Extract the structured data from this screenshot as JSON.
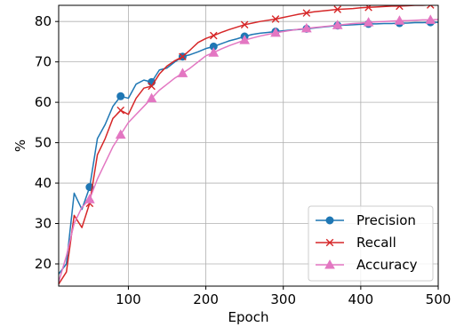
{
  "chart_data": {
    "type": "line",
    "xlabel": "Epoch",
    "ylabel": "%",
    "xlim": [
      10,
      500
    ],
    "ylim": [
      14.5,
      84
    ],
    "xticks": [
      100,
      200,
      300,
      400,
      500
    ],
    "yticks": [
      20,
      30,
      40,
      50,
      60,
      70,
      80
    ],
    "grid": true,
    "legend_position": "bottom-right",
    "series": [
      {
        "name": "Precision",
        "color": "#1f77b4",
        "marker": "circle",
        "marker_every": 4,
        "x": [
          10,
          20,
          30,
          40,
          50,
          60,
          70,
          80,
          90,
          100,
          110,
          120,
          130,
          140,
          150,
          160,
          170,
          180,
          190,
          200,
          210,
          220,
          230,
          240,
          250,
          260,
          270,
          280,
          290,
          300,
          310,
          320,
          330,
          340,
          350,
          360,
          370,
          380,
          390,
          400,
          410,
          420,
          430,
          440,
          450,
          460,
          470,
          480,
          490,
          500
        ],
        "values": [
          17.5,
          20,
          37.5,
          33.5,
          39,
          51,
          54.5,
          59,
          61.5,
          61,
          64.5,
          65.5,
          65,
          68,
          68.5,
          70,
          71.3,
          71.8,
          72.5,
          73.3,
          73.8,
          74.5,
          75.2,
          75.7,
          76.3,
          76.8,
          77.1,
          77.3,
          77.5,
          77.7,
          77.9,
          78,
          78.2,
          78.4,
          78.6,
          78.8,
          79,
          79.1,
          79.2,
          79.3,
          79.4,
          79.4,
          79.5,
          79.5,
          79.6,
          79.6,
          79.7,
          79.7,
          79.8,
          79.8
        ]
      },
      {
        "name": "Recall",
        "color": "#d62728",
        "marker": "x",
        "marker_every": 4,
        "x": [
          10,
          20,
          30,
          40,
          50,
          60,
          70,
          80,
          90,
          100,
          110,
          120,
          130,
          140,
          150,
          160,
          170,
          180,
          190,
          200,
          210,
          220,
          230,
          240,
          250,
          260,
          270,
          280,
          290,
          300,
          310,
          320,
          330,
          340,
          350,
          360,
          370,
          380,
          390,
          400,
          410,
          420,
          430,
          440,
          450,
          460,
          470,
          480,
          490,
          500
        ],
        "values": [
          15,
          18,
          32,
          29,
          35,
          47,
          51,
          56,
          58,
          57,
          61,
          63.5,
          64,
          67,
          69,
          70.3,
          71.3,
          73,
          74.8,
          75.8,
          76.5,
          77.3,
          78,
          78.6,
          79.2,
          79.6,
          80,
          80.3,
          80.6,
          81,
          81.4,
          81.8,
          82.1,
          82.4,
          82.6,
          82.8,
          83,
          83.1,
          83.2,
          83.4,
          83.5,
          83.6,
          83.7,
          83.8,
          83.8,
          83.9,
          84,
          84,
          84.1,
          84.1
        ]
      },
      {
        "name": "Accuracy",
        "color": "#e377c2",
        "marker": "triangle",
        "marker_every": 4,
        "x": [
          10,
          20,
          30,
          40,
          50,
          60,
          70,
          80,
          90,
          100,
          110,
          120,
          130,
          140,
          150,
          160,
          170,
          180,
          190,
          200,
          210,
          220,
          230,
          240,
          250,
          260,
          270,
          280,
          290,
          300,
          310,
          320,
          330,
          340,
          350,
          360,
          370,
          380,
          390,
          400,
          410,
          420,
          430,
          440,
          450,
          460,
          470,
          480,
          490,
          500
        ],
        "values": [
          15.5,
          22,
          30,
          34,
          36,
          41,
          45,
          49,
          52,
          55,
          57,
          59,
          61,
          63,
          64.5,
          66,
          67.2,
          68.5,
          70,
          71.5,
          72.3,
          73.2,
          74,
          74.7,
          75.4,
          75.9,
          76.4,
          76.8,
          77.2,
          77.5,
          77.8,
          78.1,
          78.3,
          78.5,
          78.7,
          78.9,
          79.1,
          79.3,
          79.5,
          79.6,
          79.8,
          79.9,
          80,
          80.1,
          80.2,
          80.2,
          80.3,
          80.4,
          80.4,
          80.5
        ]
      }
    ]
  }
}
